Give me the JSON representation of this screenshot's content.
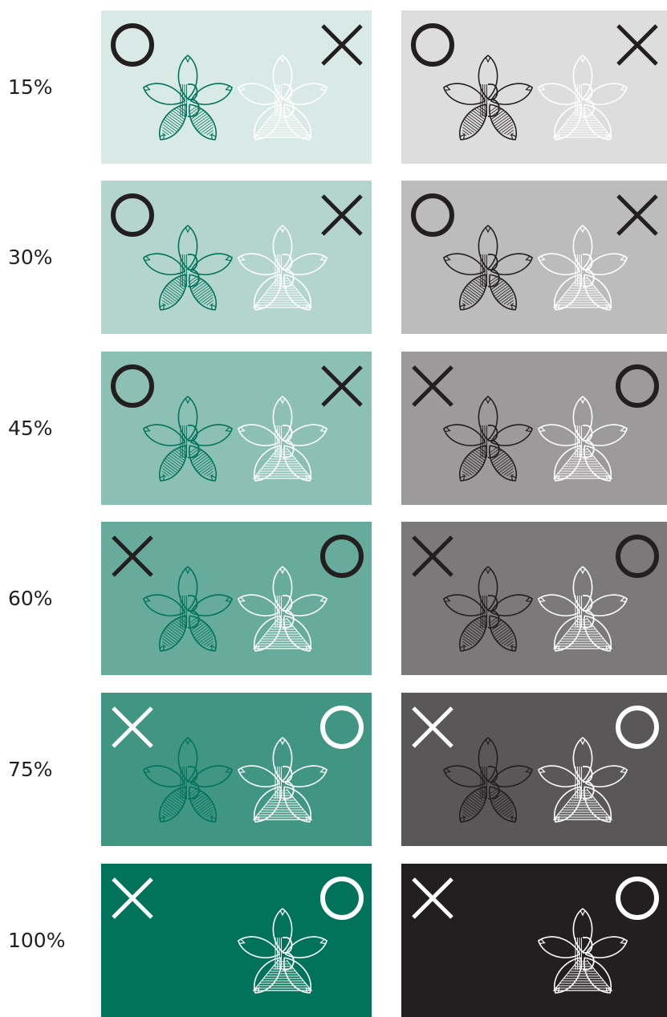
{
  "colors": {
    "green_base": "#00735a",
    "gray_base": "#231f20",
    "green_mark": "#00735a",
    "dark_mark": "#231f20",
    "light_mark": "#ffffff"
  },
  "rows": [
    {
      "label": "15%",
      "tint": 0.15,
      "green": {
        "left_symbol": "circle-mark",
        "right_symbol": "cross-mark",
        "symbol_color": "dark",
        "left_logo": "green",
        "right_logo": "light"
      },
      "gray": {
        "left_symbol": "circle-mark",
        "right_symbol": "cross-mark",
        "symbol_color": "dark",
        "left_logo": "dark",
        "right_logo": "light"
      }
    },
    {
      "label": "30%",
      "tint": 0.3,
      "green": {
        "left_symbol": "circle-mark",
        "right_symbol": "cross-mark",
        "symbol_color": "dark",
        "left_logo": "green",
        "right_logo": "light"
      },
      "gray": {
        "left_symbol": "circle-mark",
        "right_symbol": "cross-mark",
        "symbol_color": "dark",
        "left_logo": "dark",
        "right_logo": "light"
      }
    },
    {
      "label": "45%",
      "tint": 0.45,
      "green": {
        "left_symbol": "circle-mark",
        "right_symbol": "cross-mark",
        "symbol_color": "dark",
        "left_logo": "green",
        "right_logo": "light"
      },
      "gray": {
        "left_symbol": "cross-mark",
        "right_symbol": "circle-mark",
        "symbol_color": "dark",
        "left_logo": "dark",
        "right_logo": "light"
      }
    },
    {
      "label": "60%",
      "tint": 0.6,
      "green": {
        "left_symbol": "cross-mark",
        "right_symbol": "circle-mark",
        "symbol_color": "dark",
        "left_logo": "green",
        "right_logo": "light"
      },
      "gray": {
        "left_symbol": "cross-mark",
        "right_symbol": "circle-mark",
        "symbol_color": "dark",
        "left_logo": "dark",
        "right_logo": "light"
      }
    },
    {
      "label": "75%",
      "tint": 0.75,
      "green": {
        "left_symbol": "cross-mark",
        "right_symbol": "circle-mark",
        "symbol_color": "light",
        "left_logo": "green",
        "right_logo": "light"
      },
      "gray": {
        "left_symbol": "cross-mark",
        "right_symbol": "circle-mark",
        "symbol_color": "light",
        "left_logo": "dark",
        "right_logo": "light"
      }
    },
    {
      "label": "100%",
      "tint": 1.0,
      "green": {
        "left_symbol": "cross-mark",
        "right_symbol": "circle-mark",
        "symbol_color": "light",
        "left_logo": "green",
        "right_logo": "light"
      },
      "gray": {
        "left_symbol": "cross-mark",
        "right_symbol": "circle-mark",
        "symbol_color": "light",
        "left_logo": "dark",
        "right_logo": "light"
      }
    }
  ]
}
